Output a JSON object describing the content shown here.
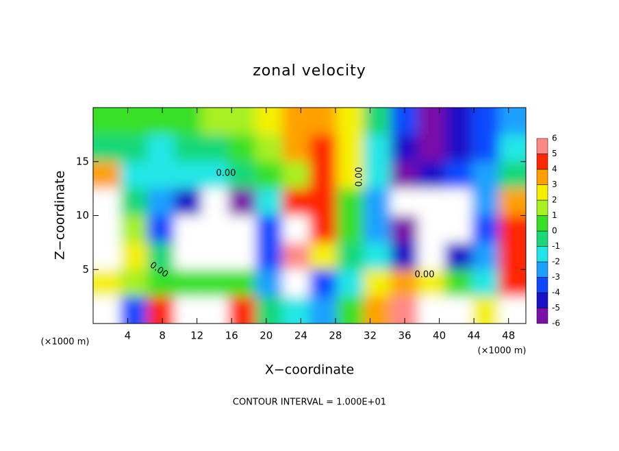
{
  "chart_data": {
    "type": "heatmap",
    "title": "zonal velocity",
    "x_label": "X−coordinate",
    "y_label": "Z−coordinate",
    "x_unit_labels": [
      "(×1000 m)",
      "(×1000 m)"
    ],
    "footer": "CONTOUR INTERVAL = 1.000E+01",
    "contour_labels": [
      "0.00",
      "0.00",
      "0.00",
      "0.00"
    ],
    "xlim": [
      0,
      50
    ],
    "ylim": [
      0,
      20
    ],
    "xticks": [
      4,
      8,
      12,
      16,
      20,
      24,
      28,
      32,
      36,
      40,
      44,
      48
    ],
    "yticks": [
      5,
      10,
      15
    ],
    "x": [
      1.56,
      4.69,
      7.81,
      10.94,
      14.06,
      17.19,
      20.31,
      23.44,
      26.56,
      29.69,
      32.81,
      35.94,
      39.06,
      42.19,
      45.31,
      48.44
    ],
    "y": [
      18.75,
      16.25,
      13.75,
      11.25,
      8.75,
      6.25,
      3.75,
      1.25
    ],
    "values": [
      [
        0.5,
        0.5,
        0.5,
        1,
        1.5,
        2,
        2.5,
        3.5,
        4,
        3,
        0,
        -3,
        -6,
        -4,
        -3,
        -2
      ],
      [
        -0.5,
        0,
        -1,
        -0.5,
        0,
        1,
        2,
        3.5,
        4.5,
        3,
        -1,
        -4,
        -6,
        -4,
        -3,
        -1
      ],
      [
        4,
        -1,
        -1,
        -1.5,
        -1,
        0,
        0.5,
        2,
        4.5,
        3,
        -1,
        -5,
        -4,
        -3,
        -2,
        0
      ],
      [
        8,
        0,
        -2,
        -4,
        -8,
        -5,
        -1,
        5,
        5,
        1,
        -2,
        -8,
        -8,
        -8,
        -2,
        4
      ],
      [
        8,
        2,
        -3,
        -8,
        -8,
        -8,
        -3,
        8,
        5,
        1,
        -2,
        -5,
        -8,
        -8,
        -3,
        5
      ],
      [
        8,
        3,
        0,
        -8,
        -8,
        -8,
        -3,
        6,
        3,
        0,
        -1,
        -4,
        -8,
        -4,
        -2,
        5
      ],
      [
        3,
        2,
        1,
        0.5,
        0.5,
        1,
        -2,
        -8,
        -3,
        -1,
        3,
        4,
        3,
        1,
        -1,
        5
      ],
      [
        -8,
        -3,
        5,
        8,
        8,
        5,
        0,
        -1,
        -2,
        0.5,
        4,
        6,
        8,
        8,
        3,
        -8
      ]
    ],
    "colorbar": {
      "levels": [
        -6,
        -5,
        -4,
        -3,
        -2,
        -1,
        0,
        1,
        2,
        3,
        4,
        5,
        6
      ],
      "colors": [
        "#7a10a8",
        "#1c10c8",
        "#1048ff",
        "#1ca0ff",
        "#20e6e6",
        "#18d878",
        "#38e028",
        "#a8f020",
        "#f4f000",
        "#ffa000",
        "#ff2800",
        "#ff8888"
      ],
      "out_of_range_color": "#ffffff"
    }
  }
}
